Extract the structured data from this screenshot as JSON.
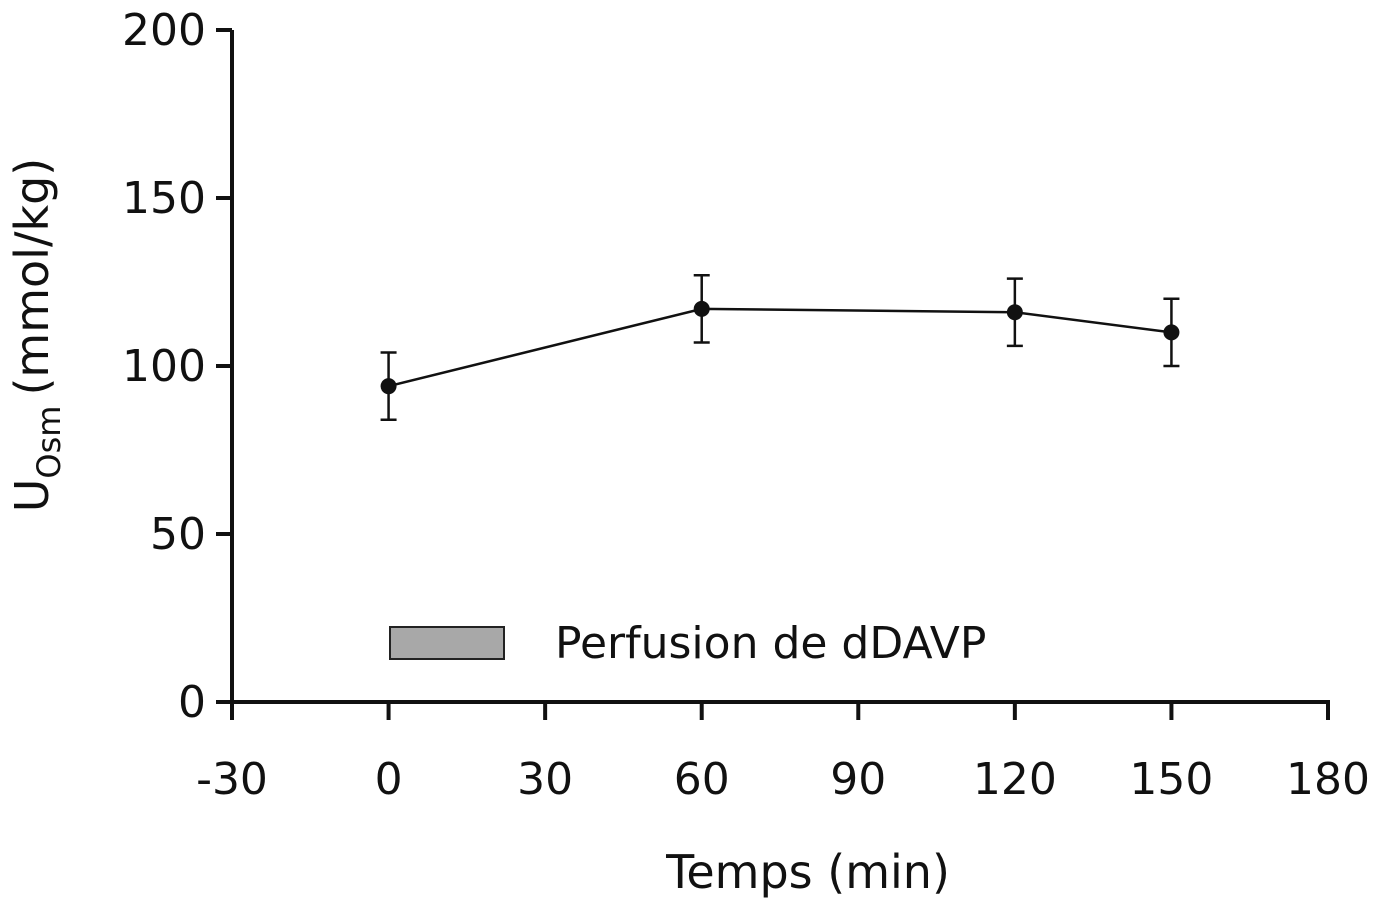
{
  "chart_data": {
    "type": "line",
    "xlabel": "Temps (min)",
    "ylabel": {
      "main": "U",
      "subscript": "Osm",
      "unit": "(mmol/kg)"
    },
    "xlim": [
      -30,
      180
    ],
    "ylim": [
      0,
      200
    ],
    "xticks": [
      -30,
      0,
      30,
      60,
      90,
      120,
      150,
      180
    ],
    "yticks": [
      0,
      50,
      100,
      150,
      200
    ],
    "grid": false,
    "series": [
      {
        "x": [
          0,
          60,
          120,
          150
        ],
        "y": [
          94,
          117,
          116,
          110
        ],
        "error": [
          10,
          10,
          10,
          10
        ],
        "color": "#111111"
      }
    ],
    "legend": {
      "label": "Perfusion de dDAVP",
      "swatch_color": "#a8a8a8",
      "placement": "bottom-center"
    }
  }
}
